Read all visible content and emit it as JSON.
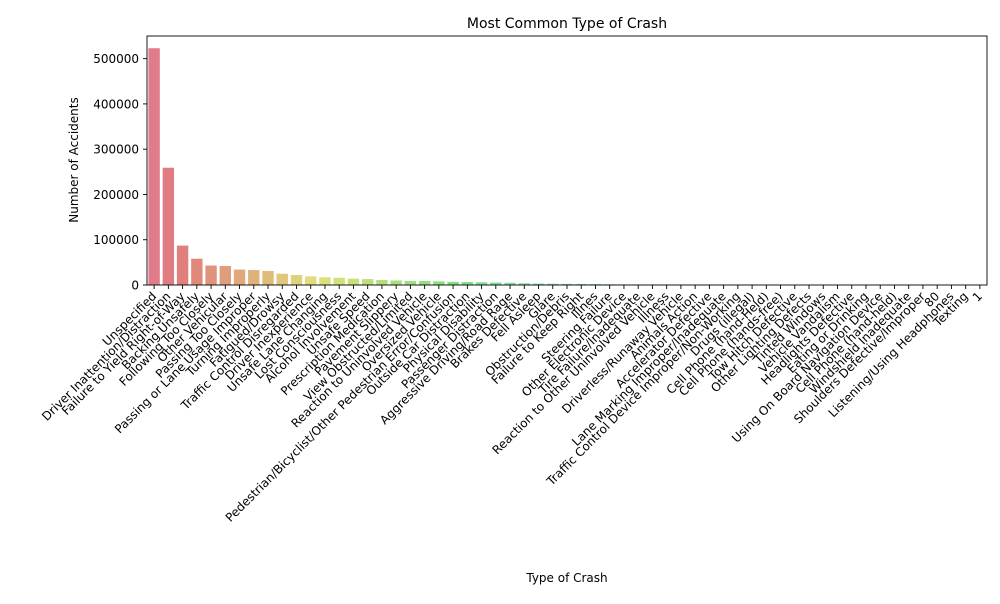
{
  "chart_data": {
    "type": "bar",
    "title": "Most Common Type of Crash",
    "xlabel": "Type of Crash",
    "ylabel": "Number of Accidents",
    "ylim": [
      0,
      550000
    ],
    "yticks": [
      0,
      100000,
      200000,
      300000,
      400000,
      500000
    ],
    "ytick_labels": [
      "0",
      "100000",
      "200000",
      "300000",
      "400000",
      "500000"
    ],
    "grid": false,
    "legend": "none",
    "categories": [
      "Unspecified",
      "Driver Inattention/Distraction",
      "Failure to Yield Right-of-Way",
      "Backing Unsafely",
      "Following Too Closely",
      "Other Vehicular",
      "Passing Too Closely",
      "Passing or Lane Usage Improper",
      "Turning Improperly",
      "Fatigued/Drowsy",
      "Traffic Control Disregarded",
      "Driver Inexperience",
      "Unsafe Lane Changing",
      "Lost Consciousness",
      "Alcohol Involvement",
      "Unsafe Speed",
      "Prescription Medication",
      "Pavement Slippery",
      "View Obstructed/Limited",
      "Reaction to Uninvolved Vehicle",
      "Oversized Vehicle",
      "Pedestrian/Bicyclist/Other Pedestrian Error/Confusion",
      "Outside Car Distraction",
      "Physical Disability",
      "Passenger Distraction",
      "Aggressive Driving/Road Rage",
      "Brakes Defective",
      "Fell Asleep",
      "Glare",
      "Obstruction/Debris",
      "Failure to Keep Right",
      "Illnes",
      "Steering Failure",
      "Other Electronic Device",
      "Tire Failure/Inadequate",
      "Reaction to Other Uninvolved Vehicle",
      "Illness",
      "Driverless/Runaway Vehicle",
      "Animals Action",
      "Accelerator Defective",
      "Lane Marking Improper/Inadequate",
      "Traffic Control Device Improper/Non-Working",
      "Drugs (illegal)",
      "Cell Phone (hand-Held)",
      "Cell Phone (hands-free)",
      "Tow Hitch Defective",
      "Other Lighting Defects",
      "Tinted Windows",
      "Vehicle Vandalism",
      "Headlights Defective",
      "Eating or Drinking",
      "Using On Board Navigation Device",
      "Cell Phone (hand-held)",
      "Windshield Inadequate",
      "Shoulders Defective/Improper",
      "80",
      "Listening/Using Headphones",
      "Texting",
      "1"
    ],
    "values": [
      523000,
      259000,
      87000,
      58000,
      43000,
      42000,
      34000,
      33000,
      31000,
      25000,
      22000,
      19000,
      17000,
      16000,
      14000,
      13000,
      11000,
      10000,
      9000,
      9000,
      8000,
      7000,
      6500,
      6000,
      5500,
      5000,
      3800,
      3300,
      2800,
      2500,
      2200,
      2000,
      1500,
      1300,
      1100,
      1000,
      900,
      800,
      700,
      600,
      500,
      450,
      400,
      350,
      300,
      260,
      220,
      190,
      160,
      140,
      120,
      100,
      90,
      80,
      70,
      80,
      60,
      50,
      1
    ]
  }
}
